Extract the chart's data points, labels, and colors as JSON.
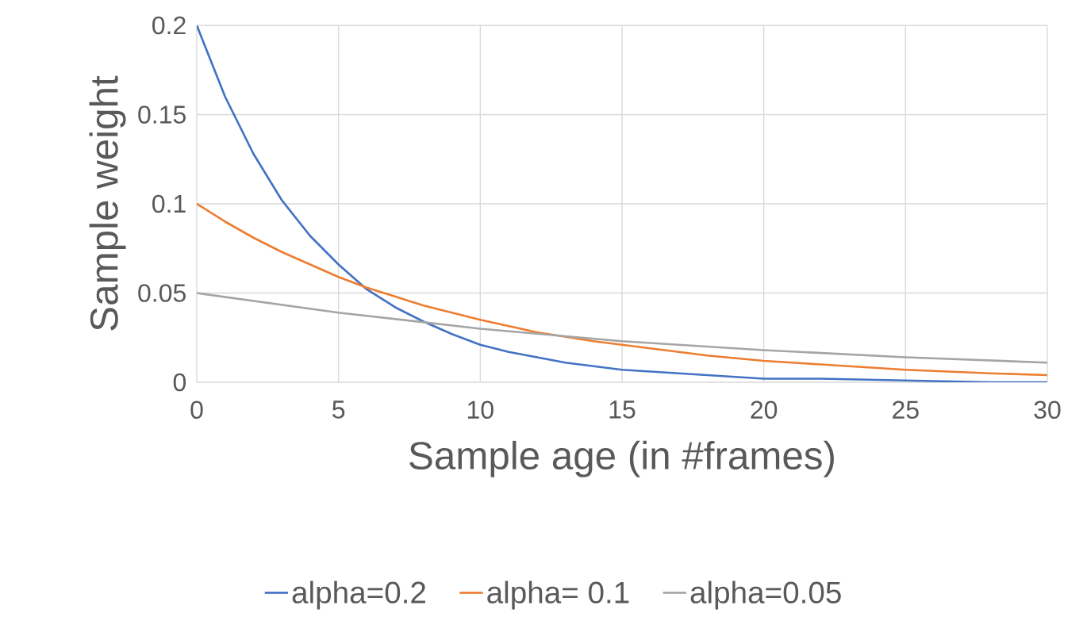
{
  "chart_data": {
    "type": "line",
    "xlabel": "Sample age (in #frames)",
    "ylabel": "Sample weight",
    "xlim": [
      0,
      30
    ],
    "ylim": [
      0,
      0.2
    ],
    "xticks": [
      0,
      5,
      10,
      15,
      20,
      25,
      30
    ],
    "yticks": [
      0,
      0.05,
      0.1,
      0.15,
      0.2
    ],
    "grid": true,
    "legend": "bottom",
    "series": [
      {
        "name": "alpha=0.2",
        "color": "#4472c4",
        "x": [
          0,
          1,
          2,
          3,
          4,
          5,
          6,
          7,
          8,
          9,
          10,
          11,
          12,
          13,
          14,
          15,
          16,
          17,
          18,
          19,
          20,
          22,
          25,
          28,
          30
        ],
        "values": [
          0.2,
          0.16,
          0.128,
          0.102,
          0.082,
          0.066,
          0.052,
          0.042,
          0.034,
          0.027,
          0.021,
          0.017,
          0.014,
          0.011,
          0.009,
          0.007,
          0.006,
          0.005,
          0.004,
          0.003,
          0.002,
          0.002,
          0.001,
          0.0,
          0.0
        ]
      },
      {
        "name": "alpha= 0.1",
        "color": "#ed7d31",
        "x": [
          0,
          1,
          2,
          3,
          4,
          5,
          6,
          7,
          8,
          9,
          10,
          12,
          14,
          16,
          18,
          20,
          22,
          25,
          28,
          30
        ],
        "values": [
          0.1,
          0.09,
          0.081,
          0.073,
          0.066,
          0.059,
          0.053,
          0.048,
          0.043,
          0.039,
          0.035,
          0.028,
          0.023,
          0.019,
          0.015,
          0.012,
          0.01,
          0.007,
          0.005,
          0.004
        ]
      },
      {
        "name": "alpha=0.05",
        "color": "#a5a5a5",
        "x": [
          0,
          5,
          10,
          15,
          20,
          25,
          30
        ],
        "values": [
          0.05,
          0.039,
          0.03,
          0.023,
          0.018,
          0.014,
          0.011
        ]
      }
    ]
  }
}
